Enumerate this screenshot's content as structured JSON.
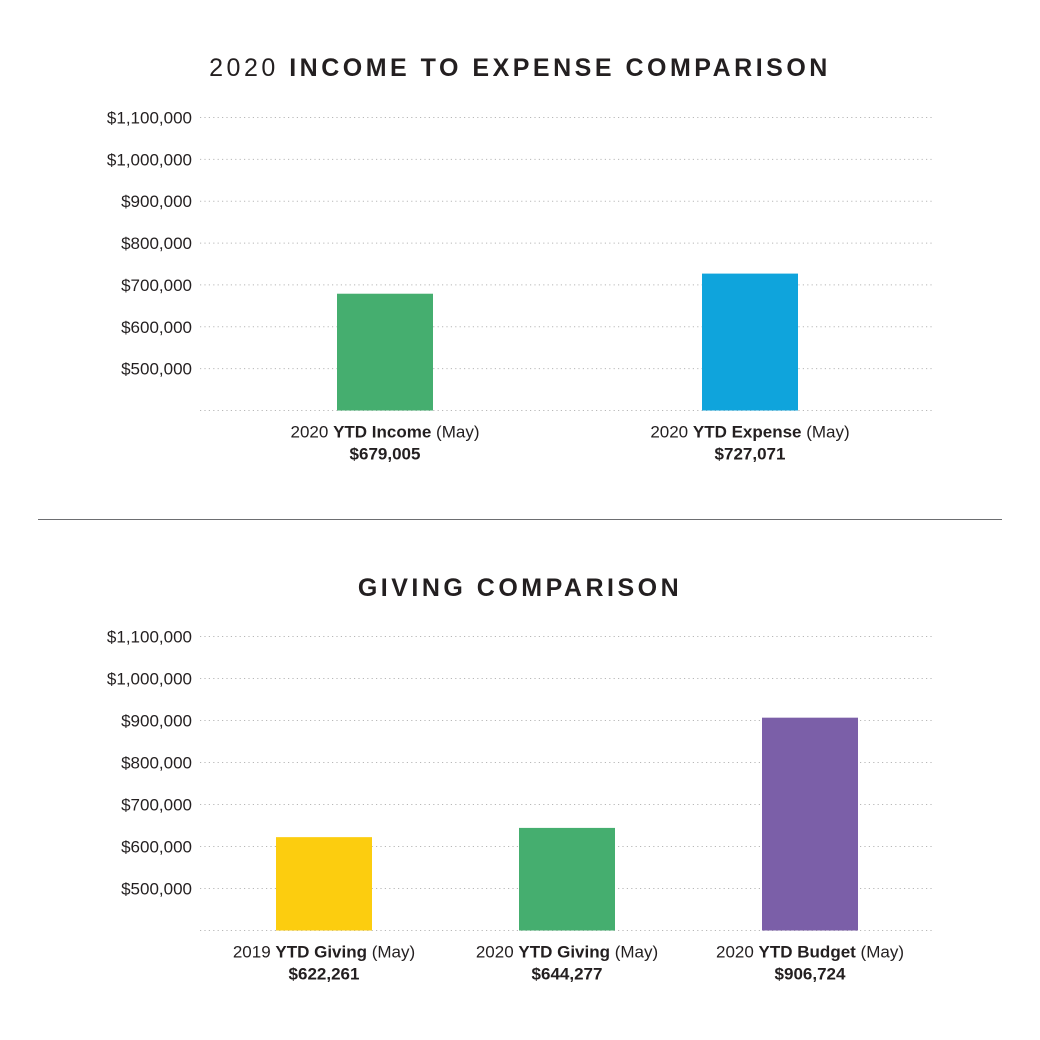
{
  "chart_data": [
    {
      "type": "bar",
      "title": {
        "prefix": "2020",
        "main": "INCOME TO EXPENSE COMPARISON"
      },
      "yticks": [
        "$1,100,000",
        "$1,000,000",
        "$900,000",
        "$800,000",
        "$700,000",
        "$600,000",
        "$500,000"
      ],
      "ylim": [
        400000,
        1100000
      ],
      "grid": true,
      "categories": [
        {
          "year": "2020",
          "name": "YTD Income",
          "period": "(May)",
          "label": "$679,005",
          "value": 679005,
          "color": "#45ae6f"
        },
        {
          "year": "2020",
          "name": "YTD Expense",
          "period": "(May)",
          "label": "$727,071",
          "value": 727071,
          "color": "#0fa4dc"
        }
      ]
    },
    {
      "type": "bar",
      "title": {
        "prefix": "",
        "main": "GIVING COMPARISON"
      },
      "yticks": [
        "$1,100,000",
        "$1,000,000",
        "$900,000",
        "$800,000",
        "$700,000",
        "$600,000",
        "$500,000"
      ],
      "ylim": [
        400000,
        1100000
      ],
      "grid": true,
      "categories": [
        {
          "year": "2019",
          "name": "YTD Giving",
          "period": "(May)",
          "label": "$622,261",
          "value": 622261,
          "color": "#fccd0f"
        },
        {
          "year": "2020",
          "name": "YTD Giving",
          "period": "(May)",
          "label": "$644,277",
          "value": 644277,
          "color": "#45ae6f"
        },
        {
          "year": "2020",
          "name": "YTD Budget",
          "period": "(May)",
          "label": "$906,724",
          "value": 906724,
          "color": "#7b5fa8"
        }
      ]
    }
  ]
}
